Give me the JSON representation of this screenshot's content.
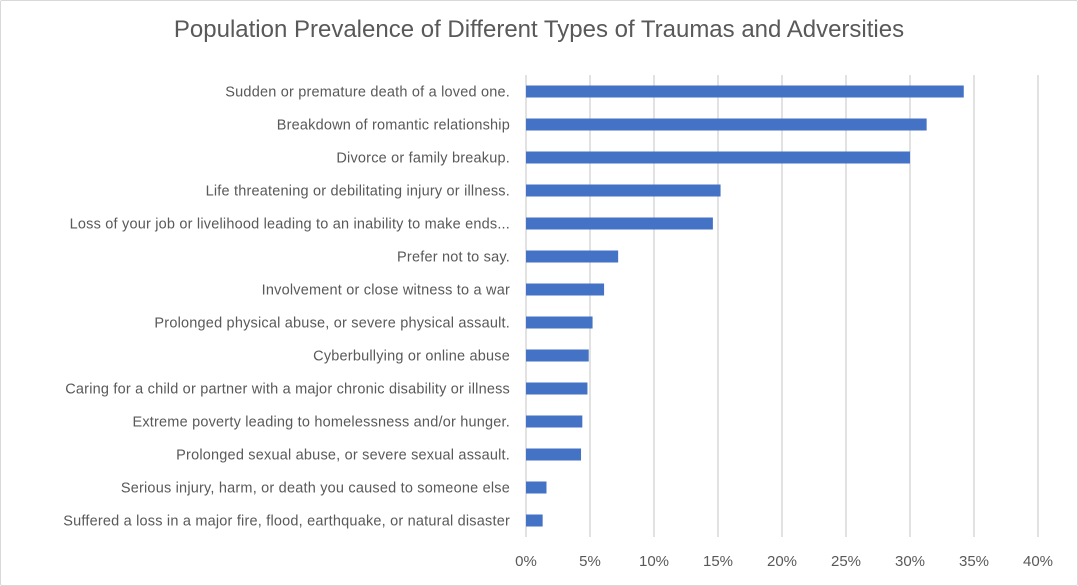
{
  "chart_data": {
    "type": "bar",
    "orientation": "horizontal",
    "title": "Population Prevalence of Different Types of Traumas and Adversities",
    "xlabel": "",
    "ylabel": "",
    "xlim": [
      0,
      40
    ],
    "x_ticks": [
      "0%",
      "5%",
      "10%",
      "15%",
      "20%",
      "25%",
      "30%",
      "35%",
      "40%"
    ],
    "grid": "vertical",
    "bar_color": "#4472C4",
    "categories": [
      "Sudden or premature death of a loved one.",
      "Breakdown of romantic relationship",
      "Divorce or family breakup.",
      "Life threatening or debilitating injury or illness.",
      "Loss of your job or livelihood leading to an inability to make ends...",
      "Prefer not to say.",
      "Involvement or close witness to a war",
      "Prolonged physical abuse, or severe physical assault.",
      "Cyberbullying or online abuse",
      "Caring for a child or partner with a major chronic disability or illness",
      "Extreme poverty leading to homelessness and/or hunger.",
      "Prolonged sexual abuse, or severe sexual assault.",
      "Serious injury, harm, or death you caused to someone else",
      "Suffered a loss in a major fire, flood, earthquake, or natural disaster"
    ],
    "values": [
      34.2,
      31.3,
      30.0,
      15.2,
      14.6,
      7.2,
      6.1,
      5.2,
      4.9,
      4.8,
      4.4,
      4.3,
      1.6,
      1.3
    ]
  }
}
